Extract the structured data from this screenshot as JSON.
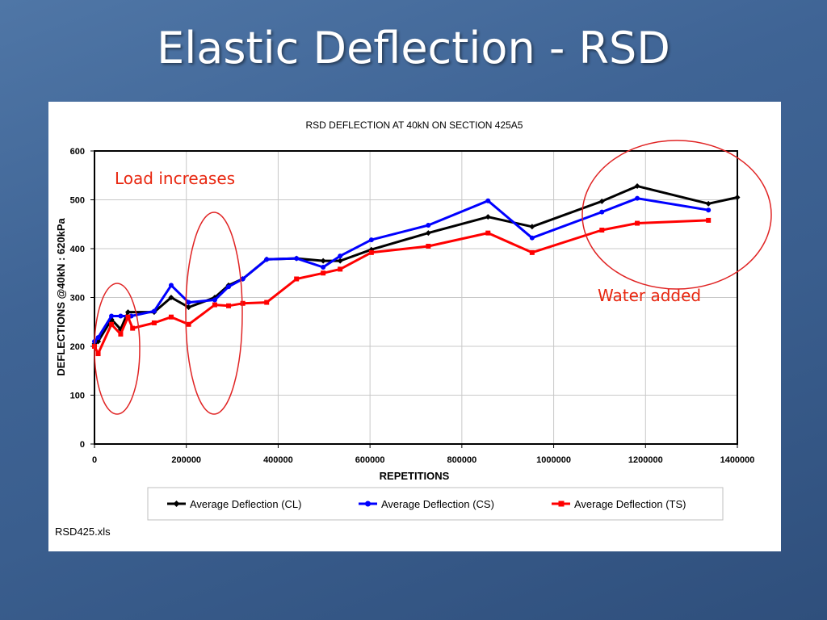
{
  "slide": {
    "title": "Elastic Deflection - RSD"
  },
  "chart_data": {
    "type": "line",
    "title": "RSD DEFLECTION AT 40kN ON SECTION 425A5",
    "xlabel": "REPETITIONS",
    "ylabel": "DEFLECTIONS @40kN : 620kPa",
    "xlim": [
      0,
      1400000
    ],
    "ylim": [
      0,
      600
    ],
    "xticks": [
      0,
      200000,
      400000,
      600000,
      800000,
      1000000,
      1200000,
      1400000
    ],
    "yticks": [
      0,
      100,
      200,
      300,
      400,
      500,
      600
    ],
    "grid": true,
    "legend_position": "bottom",
    "series": [
      {
        "name": "Average Deflection (CL)",
        "color": "#000000",
        "marker": "diamond",
        "x": [
          0,
          8000,
          37000,
          57000,
          73000,
          130000,
          167000,
          205000,
          262000,
          292000,
          323000,
          375000,
          440000,
          498000,
          535000,
          603000,
          727000,
          857000,
          953000,
          1105000,
          1182000,
          1337000,
          1400000
        ],
        "y": [
          205,
          210,
          255,
          235,
          270,
          270,
          300,
          280,
          300,
          325,
          338,
          378,
          380,
          375,
          375,
          398,
          432,
          465,
          445,
          497,
          528,
          492,
          505
        ]
      },
      {
        "name": "Average Deflection (CS)",
        "color": "#0000ff",
        "marker": "circle",
        "x": [
          0,
          8000,
          37000,
          57000,
          80000,
          130000,
          167000,
          205000,
          262000,
          292000,
          323000,
          375000,
          440000,
          498000,
          535000,
          603000,
          727000,
          857000,
          953000,
          1105000,
          1182000,
          1337000
        ],
        "y": [
          210,
          218,
          262,
          262,
          262,
          272,
          325,
          290,
          295,
          322,
          338,
          378,
          380,
          362,
          385,
          418,
          448,
          498,
          422,
          475,
          503,
          479
        ]
      },
      {
        "name": "Average Deflection (TS)",
        "color": "#ff0000",
        "marker": "square",
        "x": [
          0,
          8000,
          37000,
          57000,
          73000,
          83000,
          130000,
          167000,
          205000,
          262000,
          292000,
          323000,
          375000,
          440000,
          498000,
          535000,
          603000,
          727000,
          857000,
          953000,
          1105000,
          1182000,
          1337000
        ],
        "y": [
          200,
          185,
          245,
          225,
          260,
          237,
          248,
          260,
          245,
          285,
          283,
          288,
          290,
          338,
          350,
          358,
          392,
          405,
          432,
          392,
          438,
          452,
          458
        ]
      }
    ],
    "annotations": [
      {
        "text": "Load increases",
        "color": "#e8260f"
      },
      {
        "text": "Water added",
        "color": "#e8260f"
      }
    ],
    "footnote": "RSD425.xls"
  }
}
